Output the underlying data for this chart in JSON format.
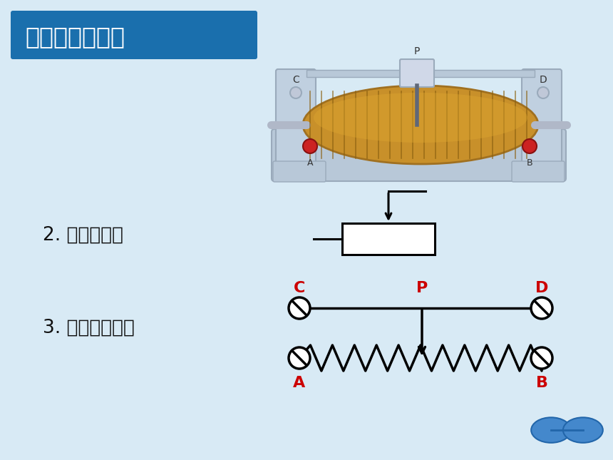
{
  "bg_color": "#cfe0ed",
  "bg_color_top": "#ddeef8",
  "title_box_color": "#1a6fad",
  "title_text": "二、滑动变阻器",
  "title_text_color": "#ffffff",
  "title_fontsize": 24,
  "label2_text": "2. 元件符号：",
  "label3_text": "3. 结构示意图：",
  "label_fontsize": 19,
  "label_color": "#111111",
  "red_color": "#cc0000",
  "black_color": "#000000",
  "diagram_lw": 2.5,
  "symbol_lw": 2.2
}
